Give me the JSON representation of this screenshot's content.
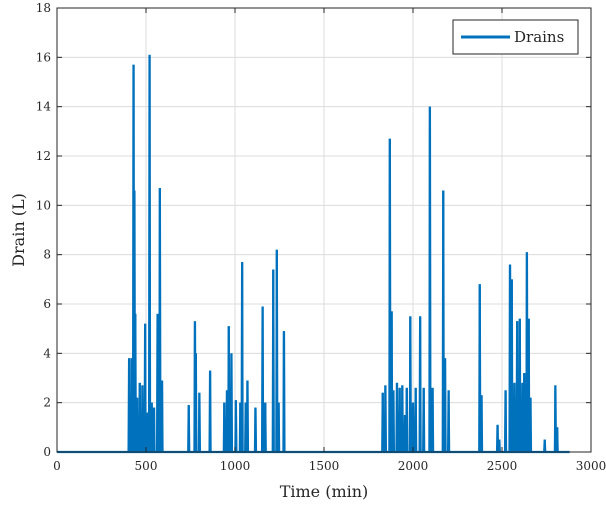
{
  "chart_data": {
    "type": "line",
    "title": "",
    "xlabel": "Time (min)",
    "ylabel": "Drain (L)",
    "xlim": [
      0,
      3000
    ],
    "ylim": [
      0,
      18
    ],
    "x_ticks": [
      0,
      500,
      1000,
      1500,
      2000,
      2500,
      3000
    ],
    "y_ticks": [
      0,
      2,
      4,
      6,
      8,
      10,
      12,
      14,
      16,
      18
    ],
    "x_tick_labels": [
      "0",
      "500",
      "1000",
      "1500",
      "2000",
      "2500",
      "3000"
    ],
    "y_tick_labels": [
      "0",
      "2",
      "4",
      "6",
      "8",
      "10",
      "12",
      "14",
      "16",
      "18"
    ],
    "grid": true,
    "box": true,
    "legend_position": "top-right",
    "color": "#0072bd",
    "series": [
      {
        "name": "Drains",
        "color": "#0072bd",
        "spikes": [
          {
            "x": 405,
            "y": 3.8
          },
          {
            "x": 420,
            "y": 3.8
          },
          {
            "x": 430,
            "y": 15.7
          },
          {
            "x": 435,
            "y": 10.6
          },
          {
            "x": 440,
            "y": 5.6
          },
          {
            "x": 450,
            "y": 2.2
          },
          {
            "x": 465,
            "y": 2.8
          },
          {
            "x": 480,
            "y": 2.7
          },
          {
            "x": 495,
            "y": 5.2
          },
          {
            "x": 510,
            "y": 1.6
          },
          {
            "x": 520,
            "y": 16.1
          },
          {
            "x": 532,
            "y": 2.0
          },
          {
            "x": 545,
            "y": 1.8
          },
          {
            "x": 565,
            "y": 5.6
          },
          {
            "x": 578,
            "y": 10.7
          },
          {
            "x": 590,
            "y": 2.9
          },
          {
            "x": 740,
            "y": 1.9
          },
          {
            "x": 775,
            "y": 5.3
          },
          {
            "x": 780,
            "y": 4.0
          },
          {
            "x": 800,
            "y": 2.4
          },
          {
            "x": 860,
            "y": 3.3
          },
          {
            "x": 940,
            "y": 2.0
          },
          {
            "x": 955,
            "y": 2.5
          },
          {
            "x": 965,
            "y": 5.1
          },
          {
            "x": 980,
            "y": 4.0
          },
          {
            "x": 1005,
            "y": 2.1
          },
          {
            "x": 1030,
            "y": 2.0
          },
          {
            "x": 1040,
            "y": 7.7
          },
          {
            "x": 1060,
            "y": 2.0
          },
          {
            "x": 1070,
            "y": 2.9
          },
          {
            "x": 1115,
            "y": 1.8
          },
          {
            "x": 1155,
            "y": 5.9
          },
          {
            "x": 1170,
            "y": 2.0
          },
          {
            "x": 1215,
            "y": 7.4
          },
          {
            "x": 1235,
            "y": 8.2
          },
          {
            "x": 1245,
            "y": 2.0
          },
          {
            "x": 1275,
            "y": 4.9
          },
          {
            "x": 1830,
            "y": 2.4
          },
          {
            "x": 1845,
            "y": 2.7
          },
          {
            "x": 1870,
            "y": 12.7
          },
          {
            "x": 1880,
            "y": 5.7
          },
          {
            "x": 1890,
            "y": 2.5
          },
          {
            "x": 1910,
            "y": 2.8
          },
          {
            "x": 1925,
            "y": 2.6
          },
          {
            "x": 1940,
            "y": 2.7
          },
          {
            "x": 1955,
            "y": 1.5
          },
          {
            "x": 1965,
            "y": 2.6
          },
          {
            "x": 1985,
            "y": 5.5
          },
          {
            "x": 2000,
            "y": 2.0
          },
          {
            "x": 2015,
            "y": 2.6
          },
          {
            "x": 2040,
            "y": 5.5
          },
          {
            "x": 2060,
            "y": 2.6
          },
          {
            "x": 2095,
            "y": 14.0
          },
          {
            "x": 2110,
            "y": 2.6
          },
          {
            "x": 2170,
            "y": 10.6
          },
          {
            "x": 2180,
            "y": 3.8
          },
          {
            "x": 2200,
            "y": 2.5
          },
          {
            "x": 2375,
            "y": 6.8
          },
          {
            "x": 2385,
            "y": 2.3
          },
          {
            "x": 2475,
            "y": 1.1
          },
          {
            "x": 2485,
            "y": 0.5
          },
          {
            "x": 2520,
            "y": 2.5
          },
          {
            "x": 2545,
            "y": 7.6
          },
          {
            "x": 2555,
            "y": 7.0
          },
          {
            "x": 2570,
            "y": 2.8
          },
          {
            "x": 2585,
            "y": 5.3
          },
          {
            "x": 2600,
            "y": 5.4
          },
          {
            "x": 2615,
            "y": 2.8
          },
          {
            "x": 2625,
            "y": 3.2
          },
          {
            "x": 2640,
            "y": 8.1
          },
          {
            "x": 2650,
            "y": 5.4
          },
          {
            "x": 2660,
            "y": 2.2
          },
          {
            "x": 2740,
            "y": 0.5
          },
          {
            "x": 2800,
            "y": 2.7
          },
          {
            "x": 2810,
            "y": 1.0
          }
        ],
        "x_end": 2880
      }
    ]
  }
}
